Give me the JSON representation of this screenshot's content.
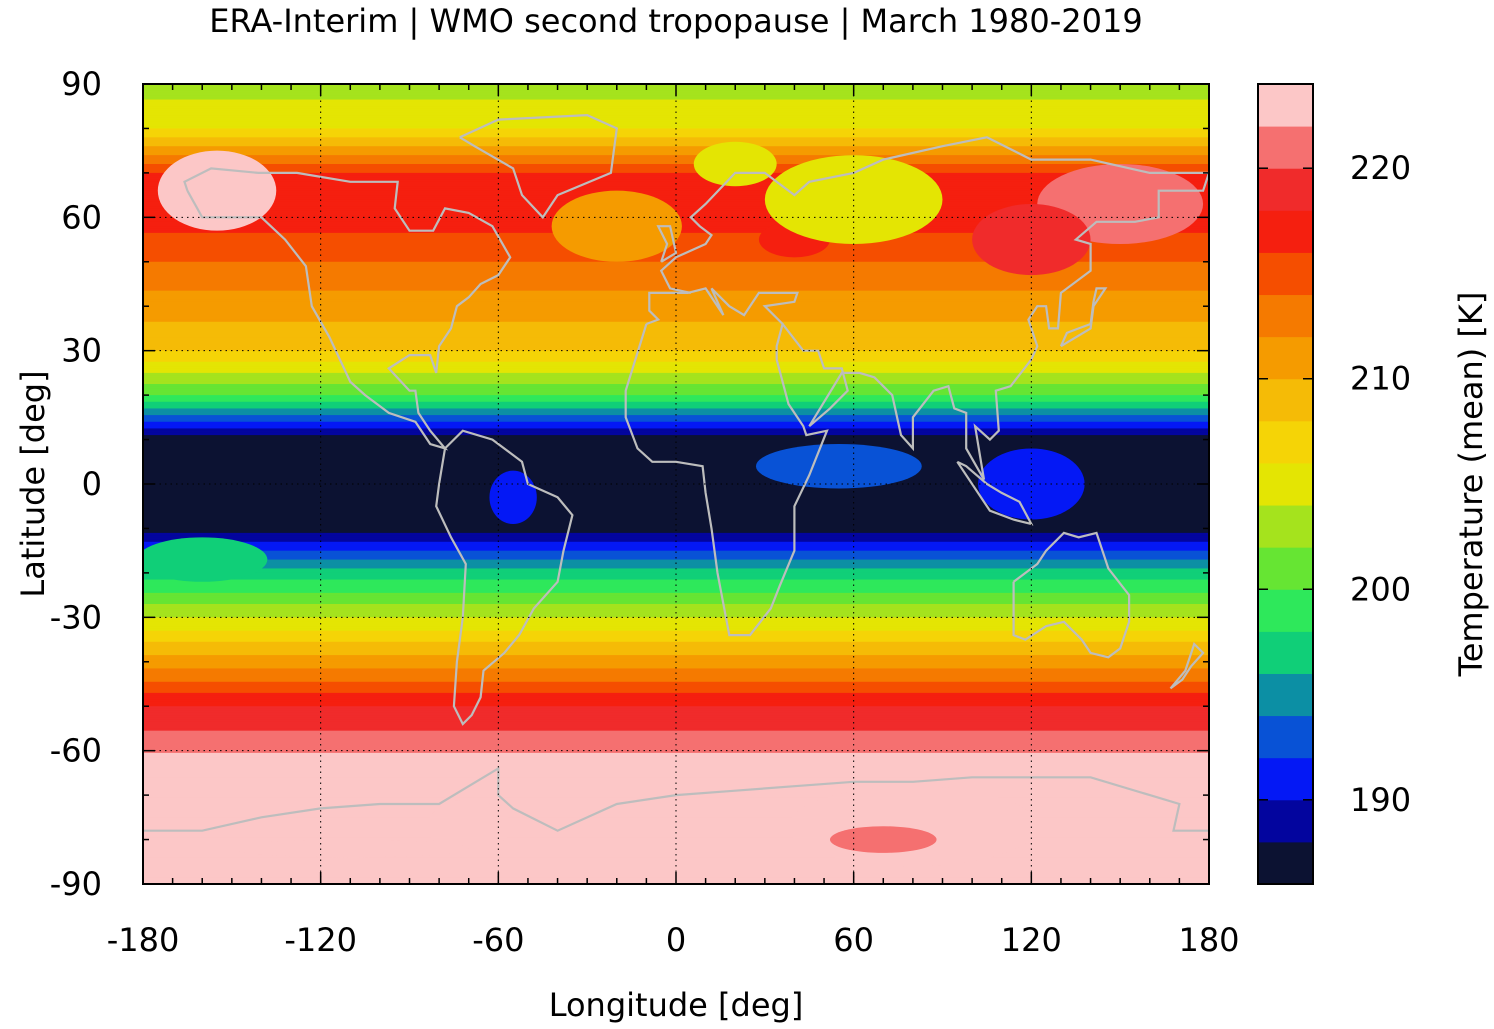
{
  "chart_data": {
    "type": "heatmap",
    "title": "ERA-Interim | WMO second tropopause | March 1980-2019",
    "xlabel": "Longitude [deg]",
    "ylabel": "Latitude [deg]",
    "colorbar_label": "Temperature (mean) [K]",
    "xlim": [
      -180,
      180
    ],
    "ylim": [
      -90,
      90
    ],
    "x_ticks": [
      "-180",
      "-120",
      "-60",
      "0",
      "60",
      "120",
      "180"
    ],
    "y_ticks": [
      "90",
      "60",
      "30",
      "0",
      "-30",
      "-60",
      "-90"
    ],
    "colorbar_ticks": [
      "220",
      "210",
      "200",
      "190"
    ],
    "colorbar_range": [
      186,
      224
    ],
    "grid": true,
    "coastline_color": "#bdbdbd",
    "colorbar_colors": [
      "#0c1232",
      "#03059e",
      "#0418f5",
      "#0852d6",
      "#0c8fa4",
      "#10cf78",
      "#2ee85b",
      "#66e533",
      "#a5e31d",
      "#e4e503",
      "#f5d406",
      "#f5bb06",
      "#f59b00",
      "#f57a00",
      "#f54e00",
      "#f51f0f",
      "#f02b2b",
      "#f57070",
      "#fcc7c7"
    ],
    "latitude_profile": [
      {
        "lat": 90,
        "temp": 203
      },
      {
        "lat": 80,
        "temp": 206
      },
      {
        "lat": 70,
        "temp": 216
      },
      {
        "lat": 60,
        "temp": 217
      },
      {
        "lat": 50,
        "temp": 214
      },
      {
        "lat": 40,
        "temp": 211
      },
      {
        "lat": 30,
        "temp": 208
      },
      {
        "lat": 20,
        "temp": 200
      },
      {
        "lat": 10,
        "temp": 187
      },
      {
        "lat": 0,
        "temp": 187
      },
      {
        "lat": -10,
        "temp": 187
      },
      {
        "lat": -20,
        "temp": 197
      },
      {
        "lat": -30,
        "temp": 204
      },
      {
        "lat": -40,
        "temp": 211
      },
      {
        "lat": -50,
        "temp": 218
      },
      {
        "lat": -58,
        "temp": 221
      },
      {
        "lat": -65,
        "temp": 224
      },
      {
        "lat": -90,
        "temp": 224
      }
    ]
  }
}
